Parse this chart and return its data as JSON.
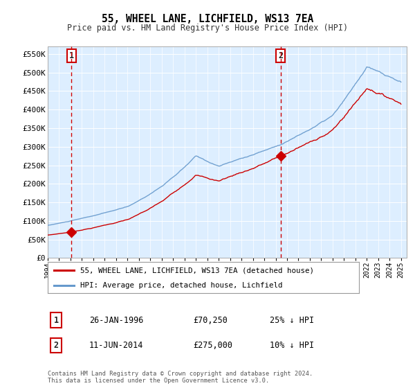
{
  "title": "55, WHEEL LANE, LICHFIELD, WS13 7EA",
  "subtitle": "Price paid vs. HM Land Registry's House Price Index (HPI)",
  "ylim": [
    0,
    570000
  ],
  "yticks": [
    0,
    50000,
    100000,
    150000,
    200000,
    250000,
    300000,
    350000,
    400000,
    450000,
    500000,
    550000
  ],
  "ytick_labels": [
    "£0",
    "£50K",
    "£100K",
    "£150K",
    "£200K",
    "£250K",
    "£300K",
    "£350K",
    "£400K",
    "£450K",
    "£500K",
    "£550K"
  ],
  "xlim_start": 1994.0,
  "xlim_end": 2025.5,
  "sale1_x": 1996.07,
  "sale1_y": 70250,
  "sale2_x": 2014.44,
  "sale2_y": 275000,
  "sale1_label": "1",
  "sale2_label": "2",
  "line_color_red": "#cc0000",
  "line_color_blue": "#6699cc",
  "bg_color_main": "#ddeeff",
  "grid_color": "#ffffff",
  "legend_entry1": "55, WHEEL LANE, LICHFIELD, WS13 7EA (detached house)",
  "legend_entry2": "HPI: Average price, detached house, Lichfield",
  "table_row1_num": "1",
  "table_row1_date": "26-JAN-1996",
  "table_row1_price": "£70,250",
  "table_row1_hpi": "25% ↓ HPI",
  "table_row2_num": "2",
  "table_row2_date": "11-JUN-2014",
  "table_row2_price": "£275,000",
  "table_row2_hpi": "10% ↓ HPI",
  "copyright": "Contains HM Land Registry data © Crown copyright and database right 2024.\nThis data is licensed under the Open Government Licence v3.0."
}
